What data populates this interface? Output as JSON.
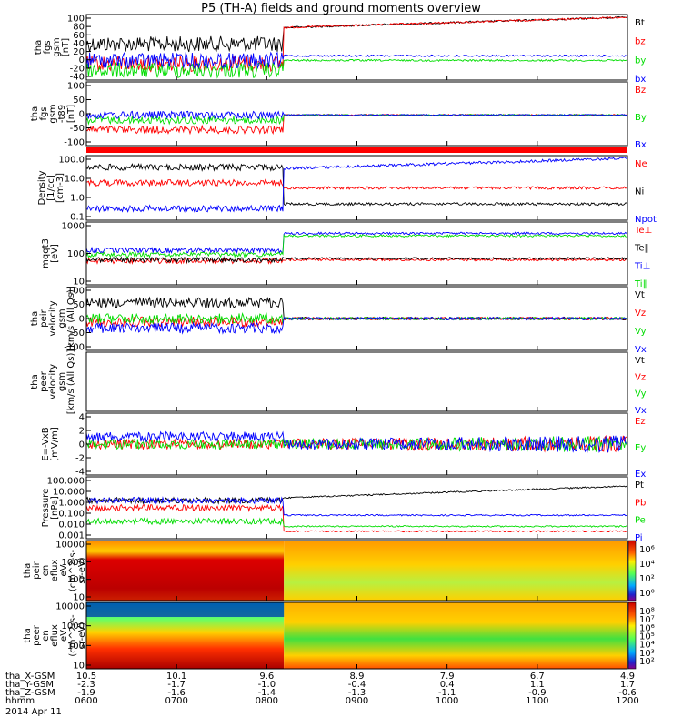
{
  "title": "P5 (TH-A) fields and ground moments overview",
  "colors": {
    "black": "#000000",
    "red": "#ff0000",
    "green": "#00dd00",
    "blue": "#0000ff"
  },
  "chart_data": {
    "type": "line",
    "x_time_ticks": [
      "0600",
      "0700",
      "0800",
      "0900",
      "1000",
      "1100",
      "1200"
    ],
    "panels": [
      {
        "id": "fgs_gsm",
        "ylabel": [
          "tha",
          "fgs",
          "gsm",
          "[nT]"
        ],
        "yticks": [
          "100",
          "80",
          "60",
          "40",
          "20",
          "0",
          "-20",
          "-40"
        ],
        "ylim": [
          -40,
          100
        ],
        "legend": [
          {
            "t": "Bt",
            "c": "black"
          },
          {
            "t": "bz",
            "c": "red"
          },
          {
            "t": "by",
            "c": "green"
          },
          {
            "t": "bx",
            "c": "blue"
          }
        ]
      },
      {
        "id": "fgs_gsm_t89",
        "ylabel": [
          "tha",
          "fgs",
          "gsm",
          "-t89",
          "[nT]"
        ],
        "yticks": [
          "100",
          "50",
          "0",
          "-50",
          "-100"
        ],
        "ylim": [
          -130,
          110
        ],
        "legend": [
          {
            "t": "Bz",
            "c": "red"
          },
          {
            "t": "By",
            "c": "green"
          },
          {
            "t": "Bx",
            "c": "blue"
          }
        ]
      },
      {
        "id": "density",
        "ylabel": [
          "Density",
          "[1/cc]",
          "[cm-3]"
        ],
        "yticks": [
          "100.0",
          "10.0",
          "1.0",
          "0.1"
        ],
        "ylim": [
          0.1,
          200
        ],
        "log": true,
        "legend": [
          {
            "t": "Ne",
            "c": "red"
          },
          {
            "t": "Ni",
            "c": "black"
          },
          {
            "t": "Npot",
            "c": "blue"
          }
        ]
      },
      {
        "id": "temp",
        "ylabel": [
          "mqqt3",
          "[eV]"
        ],
        "yticks": [
          "1000",
          "100",
          "10"
        ],
        "ylim": [
          5,
          5000
        ],
        "log": true,
        "legend": [
          {
            "t": "Te⊥",
            "c": "red"
          },
          {
            "t": "Te‖",
            "c": "black"
          },
          {
            "t": "Ti⊥",
            "c": "blue"
          },
          {
            "t": "Ti‖",
            "c": "green"
          }
        ]
      },
      {
        "id": "peir_vel",
        "ylabel": [
          "tha",
          "peir",
          "velocity",
          "gsm",
          "[km/s (All Qs)]"
        ],
        "yticks": [
          "100",
          "50",
          "0",
          "-50",
          "-100"
        ],
        "ylim": [
          -100,
          100
        ],
        "legend": [
          {
            "t": "Vt",
            "c": "black"
          },
          {
            "t": "Vz",
            "c": "red"
          },
          {
            "t": "Vy",
            "c": "green"
          },
          {
            "t": "Vx",
            "c": "blue"
          }
        ]
      },
      {
        "id": "peer_vel",
        "ylabel": [
          "tha",
          "peer",
          "velocity",
          "gsm",
          "[km/s (All Qs)]"
        ],
        "yticks": [],
        "ylim": [
          -100,
          100
        ],
        "legend": [
          {
            "t": "Vt",
            "c": "black"
          },
          {
            "t": "Vz",
            "c": "red"
          },
          {
            "t": "Vy",
            "c": "green"
          },
          {
            "t": "Vx",
            "c": "blue"
          }
        ]
      },
      {
        "id": "efield",
        "ylabel": [
          "E=-VxB",
          "[mV/m]"
        ],
        "yticks": [
          "4",
          "2",
          "0",
          "-2",
          "-4"
        ],
        "ylim": [
          -4,
          4
        ],
        "legend": [
          {
            "t": "Ez",
            "c": "red"
          },
          {
            "t": "Ey",
            "c": "green"
          },
          {
            "t": "Ex",
            "c": "blue"
          }
        ]
      },
      {
        "id": "pressure",
        "ylabel": [
          "Pressure",
          "[nPa]"
        ],
        "yticks": [
          "100.000",
          "10.000",
          "1.000",
          "0.100",
          "0.010",
          "0.001"
        ],
        "ylim": [
          0.001,
          100
        ],
        "log": true,
        "legend": [
          {
            "t": "Pt",
            "c": "black"
          },
          {
            "t": "Pb",
            "c": "red"
          },
          {
            "t": "Pe",
            "c": "green"
          },
          {
            "t": "Pi",
            "c": "blue"
          }
        ]
      },
      {
        "id": "peir_eflux",
        "ylabel": [
          "tha",
          "peir",
          "en",
          "eflux",
          "eV",
          "(cm^2-s-",
          "sr-eV)"
        ],
        "yticks": [
          "10000",
          "1000",
          "100",
          "10"
        ],
        "colorbar": [
          "10⁶",
          "10⁴",
          "10²",
          "10⁰"
        ]
      },
      {
        "id": "peer_eflux",
        "ylabel": [
          "tha",
          "peer",
          "en",
          "eflux",
          "eV",
          "(cm^2-s-",
          "sr-eV)"
        ],
        "yticks": [
          "10000",
          "1000",
          "100",
          "10"
        ],
        "colorbar": [
          "10⁸",
          "10⁷",
          "10⁶",
          "10⁵",
          "10⁴",
          "10³",
          "10²"
        ]
      }
    ],
    "ephemeris": [
      {
        "label": "tha_X-GSM",
        "values": [
          "10.5",
          "10.1",
          "9.6",
          "8.9",
          "7.9",
          "6.7",
          "4.9"
        ]
      },
      {
        "label": "tha_Y-GSM",
        "values": [
          "-2.3",
          "-1.7",
          "-1.0",
          "-0.4",
          "0.4",
          "1.1",
          "1.7"
        ]
      },
      {
        "label": "tha_Z-GSM",
        "values": [
          "-1.9",
          "-1.6",
          "-1.4",
          "-1.3",
          "-1.1",
          "-0.9",
          "-0.6"
        ]
      },
      {
        "label": "hhmm",
        "values": [
          "0600",
          "0700",
          "0800",
          "0900",
          "1000",
          "1100",
          "1200"
        ]
      }
    ],
    "date": "2014 Apr 11"
  }
}
